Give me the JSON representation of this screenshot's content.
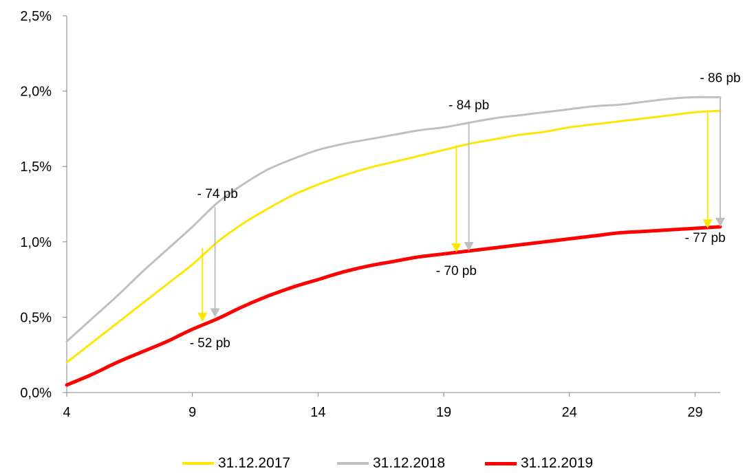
{
  "chart_data": {
    "type": "line",
    "xlim": [
      4,
      30
    ],
    "ylim": [
      0,
      2.5
    ],
    "x_ticks": [
      4,
      9,
      14,
      19,
      24,
      29
    ],
    "x_tick_labels": [
      "4",
      "9",
      "14",
      "19",
      "24",
      "29"
    ],
    "y_ticks": [
      0,
      0.5,
      1.0,
      1.5,
      2.0,
      2.5
    ],
    "y_tick_labels": [
      "0,0%",
      "0,5%",
      "1,0%",
      "1,5%",
      "2,0%",
      "2,5%"
    ],
    "grid": false,
    "legend_position": "bottom",
    "series": [
      {
        "name": "31.12.2017",
        "color": "#FFE600",
        "x": [
          4,
          5,
          6,
          7,
          8,
          9,
          10,
          11,
          12,
          13,
          14,
          15,
          16,
          17,
          18,
          19,
          20,
          21,
          22,
          23,
          24,
          25,
          26,
          27,
          28,
          29,
          30
        ],
        "y": [
          0.2,
          0.33,
          0.46,
          0.59,
          0.72,
          0.85,
          1.0,
          1.12,
          1.22,
          1.31,
          1.38,
          1.44,
          1.49,
          1.53,
          1.57,
          1.61,
          1.65,
          1.68,
          1.71,
          1.73,
          1.76,
          1.78,
          1.8,
          1.82,
          1.84,
          1.86,
          1.87
        ]
      },
      {
        "name": "31.12.2018",
        "color": "#BFBFBF",
        "x": [
          4,
          5,
          6,
          7,
          8,
          9,
          10,
          11,
          12,
          13,
          14,
          15,
          16,
          17,
          18,
          19,
          20,
          21,
          22,
          23,
          24,
          25,
          26,
          27,
          28,
          29,
          30
        ],
        "y": [
          0.34,
          0.49,
          0.64,
          0.8,
          0.95,
          1.1,
          1.26,
          1.38,
          1.48,
          1.55,
          1.61,
          1.65,
          1.68,
          1.71,
          1.74,
          1.76,
          1.79,
          1.82,
          1.84,
          1.86,
          1.88,
          1.9,
          1.91,
          1.93,
          1.95,
          1.96,
          1.96
        ]
      },
      {
        "name": "31.12.2019",
        "color": "#FF0000",
        "x": [
          4,
          5,
          6,
          7,
          8,
          9,
          10,
          11,
          12,
          13,
          14,
          15,
          16,
          17,
          18,
          19,
          20,
          21,
          22,
          23,
          24,
          25,
          26,
          27,
          28,
          29,
          30
        ],
        "y": [
          0.05,
          0.12,
          0.2,
          0.27,
          0.34,
          0.42,
          0.49,
          0.57,
          0.64,
          0.7,
          0.75,
          0.8,
          0.84,
          0.87,
          0.9,
          0.92,
          0.94,
          0.96,
          0.98,
          1.0,
          1.02,
          1.04,
          1.06,
          1.07,
          1.08,
          1.09,
          1.1
        ]
      }
    ],
    "arrows": [
      {
        "x": 9.4,
        "y_from": 0.96,
        "y_to": 0.47,
        "color": "#FFE600"
      },
      {
        "x": 9.9,
        "y_from": 1.23,
        "y_to": 0.5,
        "color": "#BFBFBF"
      },
      {
        "x": 19.5,
        "y_from": 1.64,
        "y_to": 0.93,
        "color": "#FFE600"
      },
      {
        "x": 20.0,
        "y_from": 1.79,
        "y_to": 0.94,
        "color": "#BFBFBF"
      },
      {
        "x": 29.5,
        "y_from": 1.86,
        "y_to": 1.09,
        "color": "#FFE600"
      },
      {
        "x": 30.0,
        "y_from": 1.96,
        "y_to": 1.1,
        "color": "#BFBFBF"
      }
    ],
    "annotations": [
      {
        "text": "- 74 pb",
        "x": 10.0,
        "y": 1.29
      },
      {
        "text": "- 52 pb",
        "x": 9.7,
        "y": 0.3
      },
      {
        "text": "- 84 pb",
        "x": 20.0,
        "y": 1.88
      },
      {
        "text": "- 70 pb",
        "x": 19.5,
        "y": 0.78
      },
      {
        "text": "- 86 pb",
        "x": 30.0,
        "y": 2.06
      },
      {
        "text": "- 77 pb",
        "x": 29.4,
        "y": 1.0
      }
    ]
  }
}
